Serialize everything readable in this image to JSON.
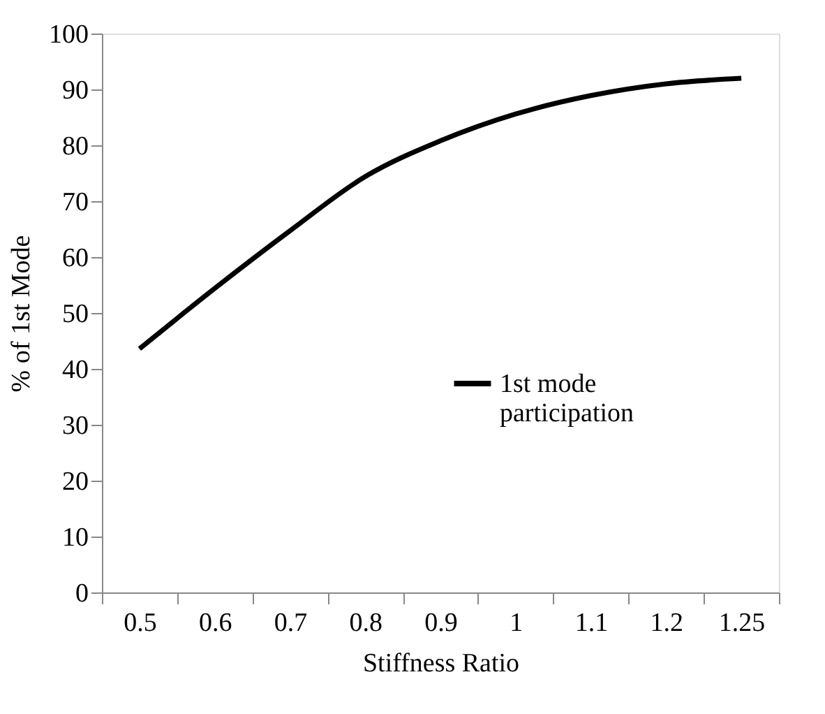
{
  "chart_data": {
    "type": "line",
    "xlabel": "Stiffness Ratio",
    "ylabel": "% of 1st Mode",
    "categories": [
      "0.5",
      "0.6",
      "0.7",
      "0.8",
      "0.9",
      "1",
      "1.1",
      "1.2",
      "1.25"
    ],
    "series": [
      {
        "name": "1st mode participation",
        "color": "#000000",
        "values": [
          43.6,
          54.4,
          64.7,
          74.4,
          80.8,
          85.6,
          88.9,
          91.0,
          92.0
        ]
      }
    ],
    "ylim": [
      0,
      100
    ],
    "yticks": [
      0,
      10,
      20,
      30,
      40,
      50,
      60,
      70,
      80,
      90,
      100
    ],
    "grid": false,
    "legend": "right",
    "marker": "none",
    "line_style": "solid"
  }
}
